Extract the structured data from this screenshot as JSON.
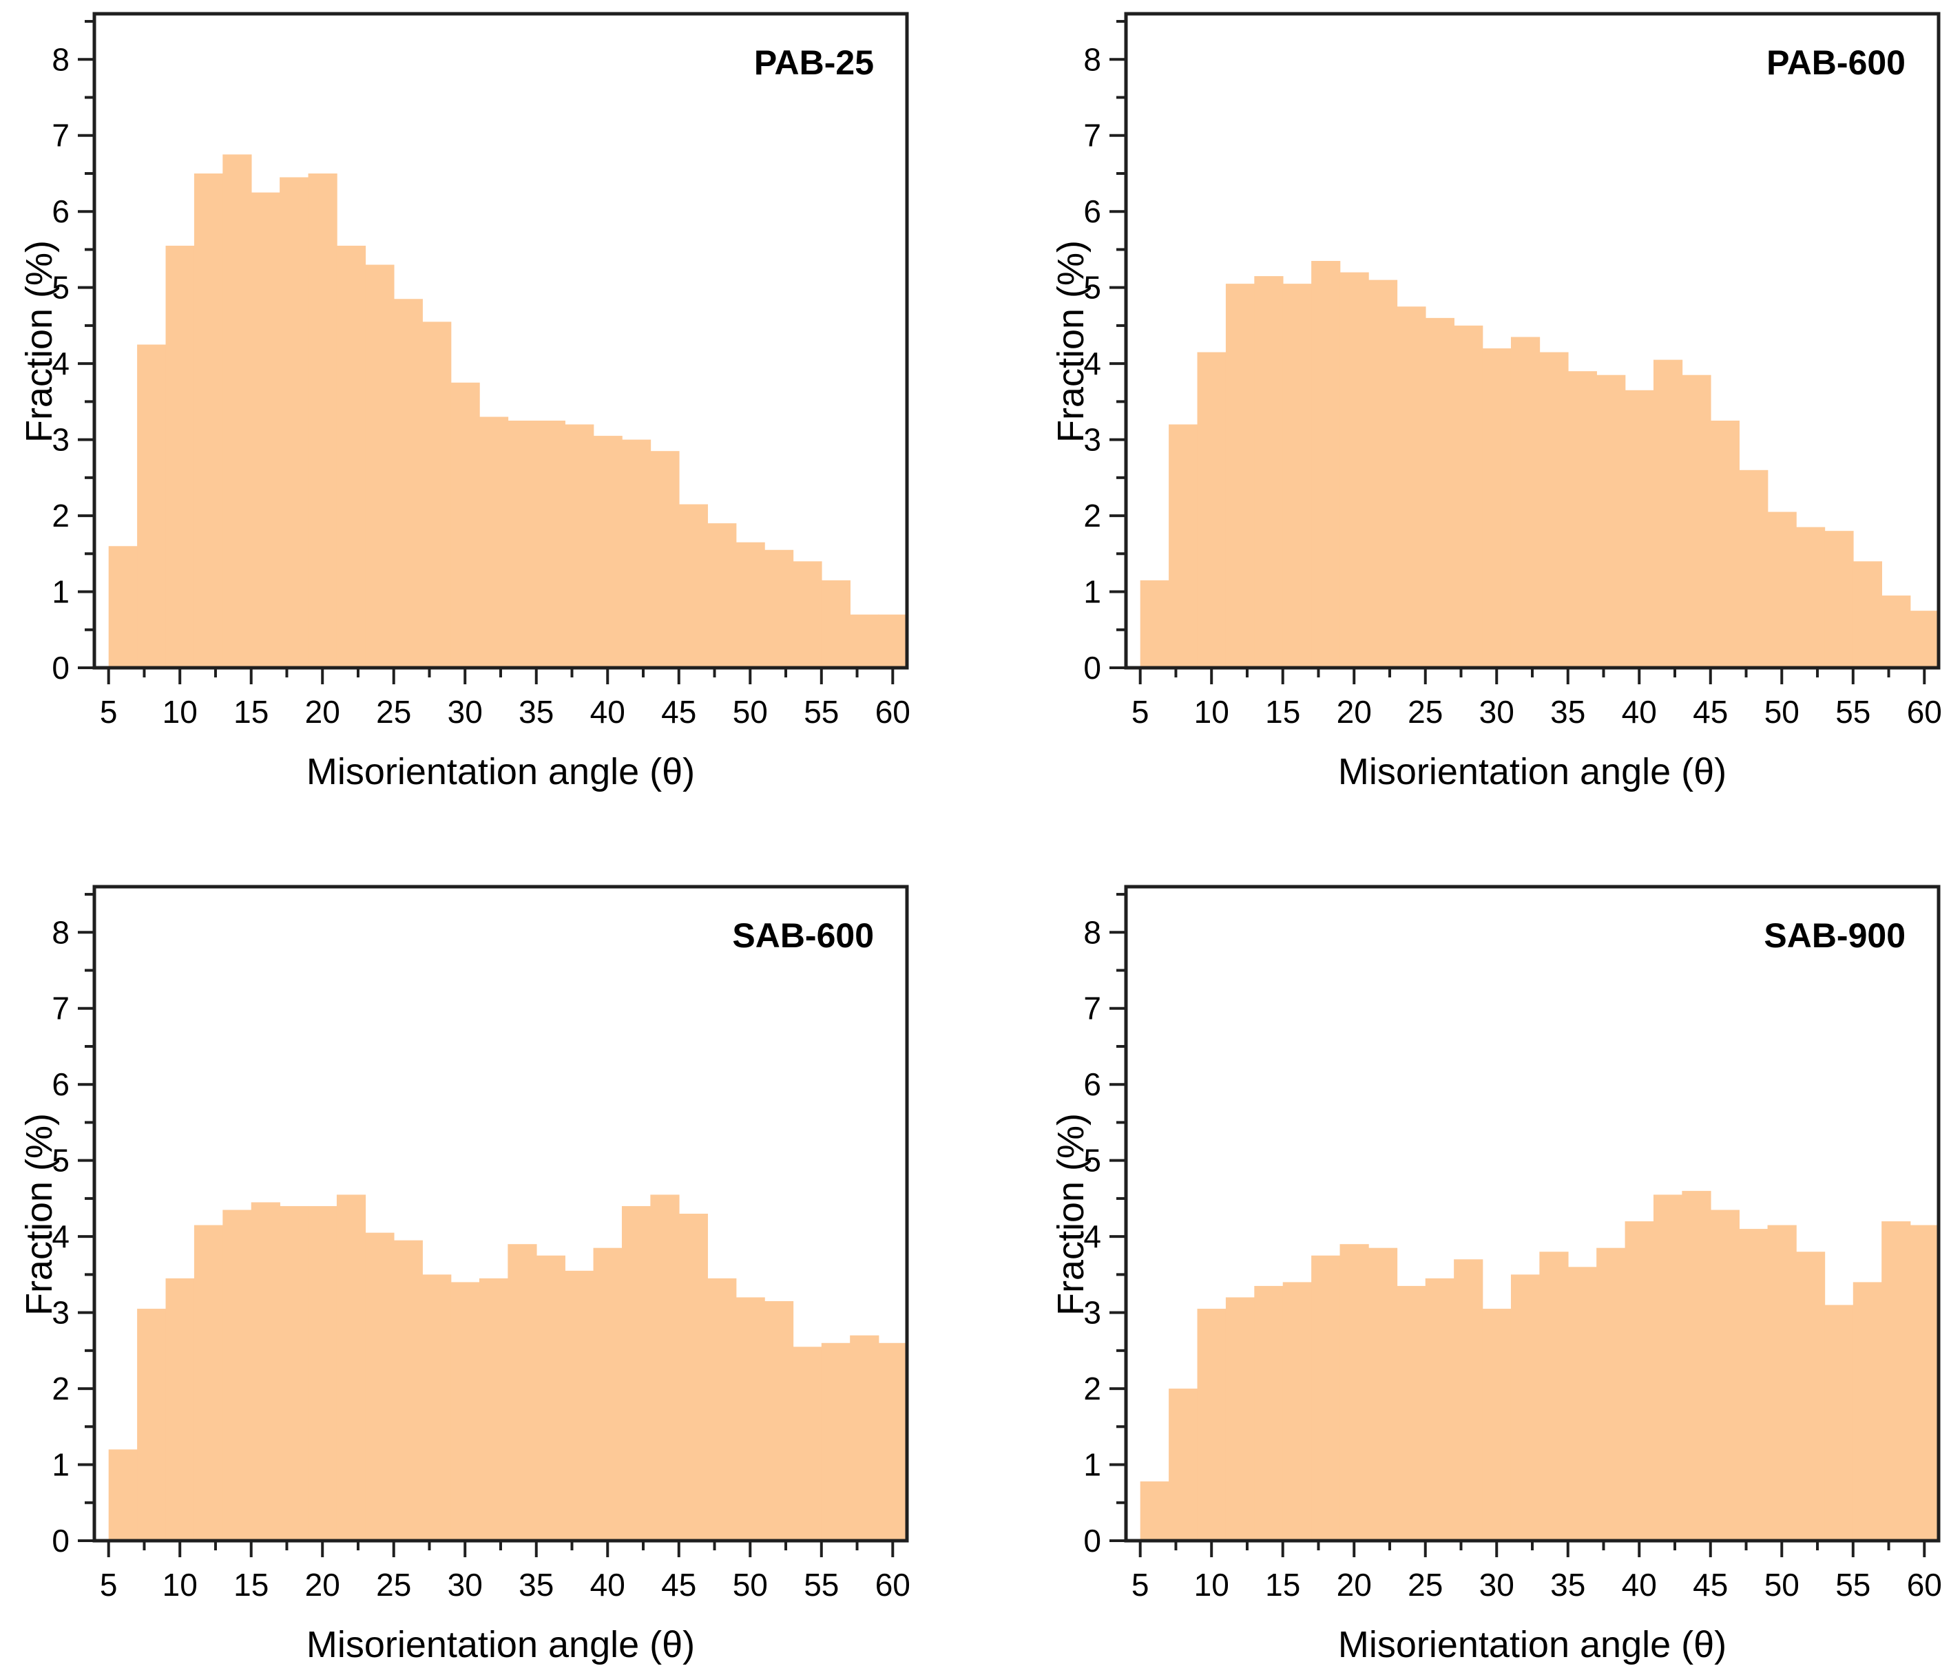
{
  "figure": {
    "background": "#ffffff",
    "bar_fill": "#fdc997",
    "axis_color": "#1f1f1f",
    "text_color": "#000000",
    "grid": "off",
    "legend": "none"
  },
  "chart_data": [
    {
      "type": "bar",
      "title": "PAB-25",
      "xlabel": "Misorientation angle (θ)",
      "ylabel": "Fraction (%)",
      "bin_start": 5,
      "bin_width": 2,
      "values": [
        1.6,
        4.25,
        5.55,
        6.5,
        6.75,
        6.25,
        6.45,
        6.5,
        5.55,
        5.3,
        4.85,
        4.55,
        3.75,
        3.3,
        3.25,
        3.25,
        3.2,
        3.05,
        3.0,
        2.85,
        2.15,
        1.9,
        1.65,
        1.55,
        1.4,
        1.15,
        0.7,
        0.7
      ],
      "xlim": [
        4,
        61
      ],
      "ylim": [
        0,
        8.6
      ],
      "xticks": [
        5,
        10,
        15,
        20,
        25,
        30,
        35,
        40,
        45,
        50,
        55,
        60
      ],
      "yticks": [
        0,
        1,
        2,
        3,
        4,
        5,
        6,
        7,
        8
      ]
    },
    {
      "type": "bar",
      "title": "PAB-600",
      "xlabel": "Misorientation angle (θ)",
      "ylabel": "Fraction (%)",
      "bin_start": 5,
      "bin_width": 2,
      "values": [
        1.15,
        3.2,
        4.15,
        5.05,
        5.15,
        5.05,
        5.35,
        5.2,
        5.1,
        4.75,
        4.6,
        4.5,
        4.2,
        4.35,
        4.15,
        3.9,
        3.85,
        3.65,
        4.05,
        3.85,
        3.25,
        2.6,
        2.05,
        1.85,
        1.8,
        1.4,
        0.95,
        0.75
      ],
      "xlim": [
        4,
        61
      ],
      "ylim": [
        0,
        8.6
      ],
      "xticks": [
        5,
        10,
        15,
        20,
        25,
        30,
        35,
        40,
        45,
        50,
        55,
        60
      ],
      "yticks": [
        0,
        1,
        2,
        3,
        4,
        5,
        6,
        7,
        8
      ]
    },
    {
      "type": "bar",
      "title": "SAB-600",
      "xlabel": "Misorientation angle (θ)",
      "ylabel": "Fraction (%)",
      "bin_start": 5,
      "bin_width": 2,
      "values": [
        1.2,
        3.05,
        3.45,
        4.15,
        4.35,
        4.45,
        4.4,
        4.4,
        4.55,
        4.05,
        3.95,
        3.5,
        3.4,
        3.45,
        3.9,
        3.75,
        3.55,
        3.85,
        4.4,
        4.55,
        4.3,
        3.45,
        3.2,
        3.15,
        2.55,
        2.6,
        2.7,
        2.6
      ],
      "xlim": [
        4,
        61
      ],
      "ylim": [
        0,
        8.6
      ],
      "xticks": [
        5,
        10,
        15,
        20,
        25,
        30,
        35,
        40,
        45,
        50,
        55,
        60
      ],
      "yticks": [
        0,
        1,
        2,
        3,
        4,
        5,
        6,
        7,
        8
      ]
    },
    {
      "type": "bar",
      "title": "SAB-900",
      "xlabel": "Misorientation angle (θ)",
      "ylabel": "Fraction (%)",
      "bin_start": 5,
      "bin_width": 2,
      "values": [
        0.78,
        2.0,
        3.05,
        3.2,
        3.35,
        3.4,
        3.75,
        3.9,
        3.85,
        3.35,
        3.45,
        3.7,
        3.05,
        3.5,
        3.8,
        3.6,
        3.85,
        4.2,
        4.55,
        4.6,
        4.35,
        4.1,
        4.15,
        3.8,
        3.1,
        3.4,
        4.2,
        4.15
      ],
      "xlim": [
        4,
        61
      ],
      "ylim": [
        0,
        8.6
      ],
      "xticks": [
        5,
        10,
        15,
        20,
        25,
        30,
        35,
        40,
        45,
        50,
        55,
        60
      ],
      "yticks": [
        0,
        1,
        2,
        3,
        4,
        5,
        6,
        7,
        8
      ]
    }
  ]
}
